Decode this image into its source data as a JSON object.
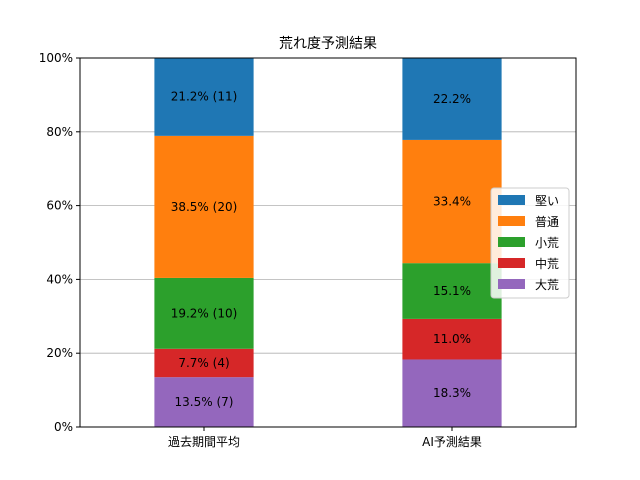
{
  "chart_data": {
    "type": "bar",
    "stacked": true,
    "title": "荒れ度予測結果",
    "xlabel": "",
    "ylabel": "",
    "categories": [
      "過去期間平均",
      "AI予測結果"
    ],
    "ylim": [
      0,
      100
    ],
    "yticks": [
      0,
      20,
      40,
      60,
      80,
      100
    ],
    "ytick_labels": [
      "0%",
      "20%",
      "40%",
      "60%",
      "80%",
      "100%"
    ],
    "grid": "horizontal",
    "legend_position": "center-right",
    "series": [
      {
        "name": "大荒",
        "color": "#9467bd",
        "values": [
          13.5,
          18.3
        ],
        "labels": [
          "13.5% (7)",
          "18.3%"
        ]
      },
      {
        "name": "中荒",
        "color": "#d62728",
        "values": [
          7.7,
          11.0
        ],
        "labels": [
          "7.7% (4)",
          "11.0%"
        ]
      },
      {
        "name": "小荒",
        "color": "#2ca02c",
        "values": [
          19.2,
          15.1
        ],
        "labels": [
          "19.2% (10)",
          "15.1%"
        ]
      },
      {
        "name": "普通",
        "color": "#ff7f0e",
        "values": [
          38.5,
          33.4
        ],
        "labels": [
          "38.5% (20)",
          "33.4%"
        ]
      },
      {
        "name": "堅い",
        "color": "#1f77b4",
        "values": [
          21.2,
          22.2
        ],
        "labels": [
          "21.2% (11)",
          "22.2%"
        ]
      }
    ],
    "legend_order": [
      "堅い",
      "普通",
      "小荒",
      "中荒",
      "大荒"
    ]
  }
}
